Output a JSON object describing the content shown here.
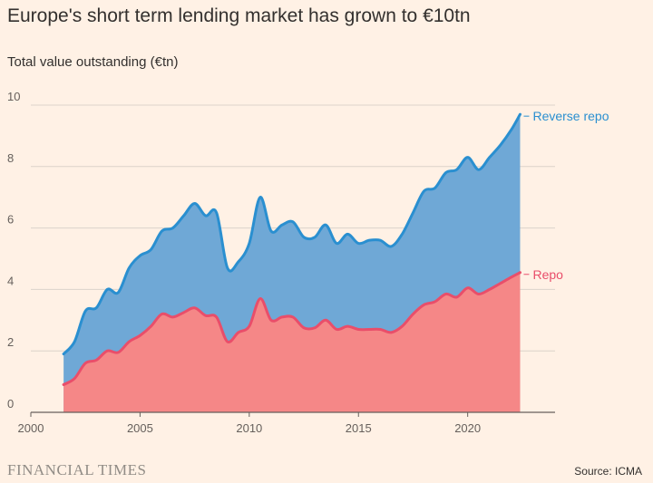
{
  "header": {
    "title": "Europe's short term lending market has grown to €10tn",
    "subtitle": "Total value outstanding (€tn)"
  },
  "footer": {
    "brand": "FINANCIAL TIMES",
    "source": "Source: ICMA"
  },
  "chart_data": {
    "type": "area",
    "title": "Europe's short term lending market has grown to €10tn",
    "ylabel": "Total value outstanding (€tn)",
    "xlabel": "",
    "xlim": [
      2000,
      2024
    ],
    "ylim": [
      0,
      10
    ],
    "xticks": [
      2000,
      2005,
      2010,
      2015,
      2020
    ],
    "yticks": [
      0,
      2,
      4,
      6,
      8,
      10
    ],
    "grid": true,
    "colors": {
      "reverse_repo_line": "#2A8FD0",
      "reverse_repo_fill": "#6FA8D6",
      "repo_line": "#E94E6A",
      "repo_fill": "#F58787",
      "background": "#FFF1E5",
      "grid": "#DCD3CA",
      "axis": "#66605C"
    },
    "series": [
      {
        "name": "Reverse repo",
        "color": "#2A8FD0",
        "x": [
          2001.5,
          2002.0,
          2002.5,
          2003.0,
          2003.5,
          2004.0,
          2004.5,
          2005.0,
          2005.5,
          2006.0,
          2006.5,
          2007.0,
          2007.5,
          2008.0,
          2008.5,
          2009.0,
          2009.5,
          2010.0,
          2010.5,
          2011.0,
          2011.5,
          2012.0,
          2012.5,
          2013.0,
          2013.5,
          2014.0,
          2014.5,
          2015.0,
          2015.5,
          2016.0,
          2016.5,
          2017.0,
          2017.5,
          2018.0,
          2018.5,
          2019.0,
          2019.5,
          2020.0,
          2020.5,
          2021.0,
          2021.5,
          2022.0,
          2022.4
        ],
        "values": [
          1.9,
          2.3,
          3.3,
          3.4,
          4.0,
          3.9,
          4.7,
          5.1,
          5.3,
          5.9,
          6.0,
          6.4,
          6.8,
          6.4,
          6.5,
          4.7,
          4.9,
          5.5,
          7.0,
          5.9,
          6.1,
          6.2,
          5.7,
          5.7,
          6.1,
          5.5,
          5.8,
          5.5,
          5.6,
          5.6,
          5.4,
          5.8,
          6.5,
          7.2,
          7.3,
          7.8,
          7.9,
          8.3,
          7.9,
          8.3,
          8.7,
          9.2,
          9.7
        ]
      },
      {
        "name": "Repo",
        "color": "#E94E6A",
        "x": [
          2001.5,
          2002.0,
          2002.5,
          2003.0,
          2003.5,
          2004.0,
          2004.5,
          2005.0,
          2005.5,
          2006.0,
          2006.5,
          2007.0,
          2007.5,
          2008.0,
          2008.5,
          2009.0,
          2009.5,
          2010.0,
          2010.5,
          2011.0,
          2011.5,
          2012.0,
          2012.5,
          2013.0,
          2013.5,
          2014.0,
          2014.5,
          2015.0,
          2015.5,
          2016.0,
          2016.5,
          2017.0,
          2017.5,
          2018.0,
          2018.5,
          2019.0,
          2019.5,
          2020.0,
          2020.5,
          2021.0,
          2021.5,
          2022.0,
          2022.4
        ],
        "values": [
          0.9,
          1.1,
          1.6,
          1.7,
          2.0,
          1.95,
          2.3,
          2.5,
          2.8,
          3.2,
          3.1,
          3.25,
          3.4,
          3.15,
          3.1,
          2.3,
          2.6,
          2.8,
          3.7,
          3.0,
          3.1,
          3.1,
          2.75,
          2.75,
          3.0,
          2.7,
          2.8,
          2.7,
          2.7,
          2.7,
          2.6,
          2.8,
          3.2,
          3.5,
          3.6,
          3.85,
          3.75,
          4.05,
          3.85,
          4.0,
          4.2,
          4.4,
          4.55
        ]
      }
    ],
    "annotations": [
      {
        "label": "Reverse repo",
        "series": "Reverse repo"
      },
      {
        "label": "Repo",
        "series": "Repo"
      }
    ]
  }
}
